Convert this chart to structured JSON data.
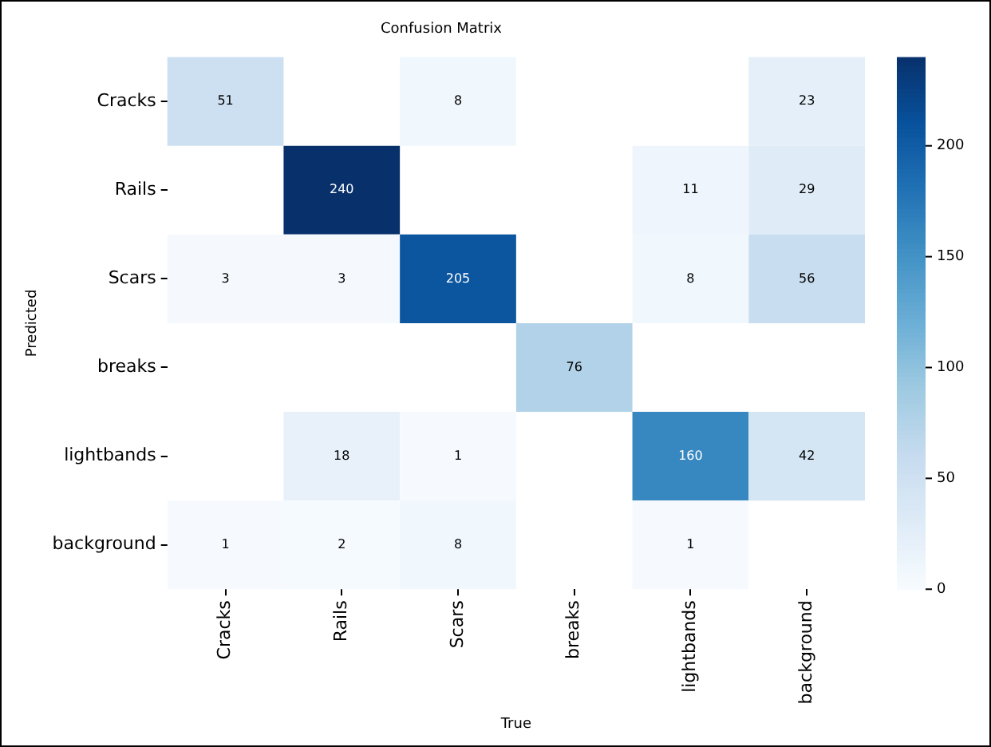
{
  "chart_data": {
    "type": "heatmap",
    "title": "Confusion Matrix",
    "xlabel": "True",
    "ylabel": "Predicted",
    "categories": [
      "Cracks",
      "Rails",
      "Scars",
      "breaks",
      "lightbands",
      "background"
    ],
    "y_categories": [
      "Cracks",
      "Rails",
      "Scars",
      "breaks",
      "lightbands",
      "background"
    ],
    "cells": [
      [
        51,
        null,
        8,
        null,
        null,
        23
      ],
      [
        null,
        240,
        null,
        null,
        11,
        29
      ],
      [
        3,
        3,
        205,
        null,
        8,
        56
      ],
      [
        null,
        null,
        null,
        76,
        null,
        null
      ],
      [
        null,
        18,
        1,
        null,
        160,
        42
      ],
      [
        1,
        2,
        8,
        null,
        1,
        null
      ]
    ],
    "data_labels": true,
    "clim": [
      0,
      240
    ],
    "cticks": [
      0,
      50,
      100,
      150,
      200
    ],
    "grid": false
  }
}
